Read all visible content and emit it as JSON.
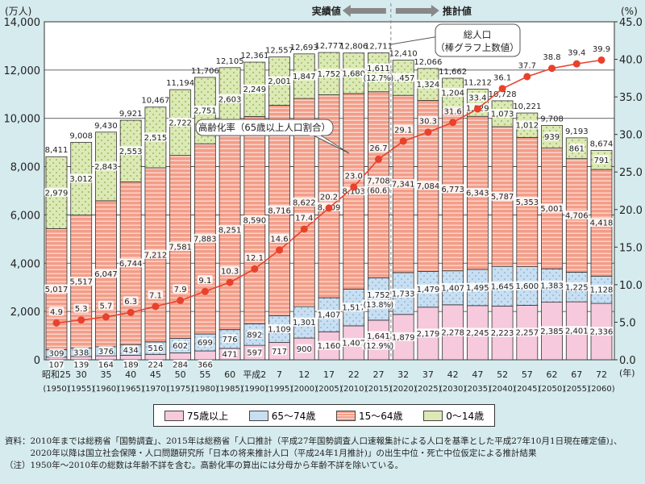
{
  "chart_data": {
    "type": "bar",
    "stacked": true,
    "left_axis": {
      "unit_label": "(万人)",
      "ylim": [
        0,
        14000
      ],
      "ticks": [
        "0",
        "2,000",
        "4,000",
        "6,000",
        "8,000",
        "10,000",
        "12,000",
        "14,000"
      ]
    },
    "right_axis": {
      "unit_label": "(%)",
      "ylim": [
        0,
        45
      ],
      "ticks": [
        "0.0",
        "5.0",
        "10.0",
        "15.0",
        "20.0",
        "25.0",
        "30.0",
        "35.0",
        "40.0",
        "45.0"
      ]
    },
    "x_unit_label": "(年)",
    "categories": [
      "昭和25",
      "30",
      "35",
      "40",
      "45",
      "50",
      "55",
      "60",
      "平成2",
      "7",
      "12",
      "17",
      "22",
      "27",
      "32",
      "37",
      "42",
      "47",
      "52",
      "57",
      "62",
      "67",
      "72"
    ],
    "categories_western": [
      "(1950)",
      "(1955)",
      "(1960)",
      "(1965)",
      "(1970)",
      "(1975)",
      "(1980)",
      "(1985)",
      "(1990)",
      "(1995)",
      "(2000)",
      "(2005)",
      "(2010)",
      "(2015)",
      "(2020)",
      "(2025)",
      "(2030)",
      "(2035)",
      "(2040)",
      "(2045)",
      "(2050)",
      "(2055)",
      "(2060)"
    ],
    "series": [
      {
        "name": "75歳以上",
        "color": "#f6c9dc",
        "values": [
          107,
          139,
          164,
          189,
          224,
          284,
          366,
          471,
          597,
          717,
          900,
          1160,
          1407,
          1641,
          1879,
          2179,
          2278,
          2245,
          2223,
          2257,
          2385,
          2401,
          2336
        ]
      },
      {
        "name": "65～74歳",
        "color": "#c8dff1",
        "values": [
          309,
          338,
          376,
          434,
          516,
          602,
          699,
          776,
          892,
          1109,
          1301,
          1407,
          1517,
          1752,
          1733,
          1479,
          1407,
          1495,
          1645,
          1600,
          1383,
          1225,
          1128
        ]
      },
      {
        "name": "15～64歳",
        "color": "#f39d88",
        "values": [
          5017,
          5517,
          6047,
          6744,
          7212,
          7581,
          7883,
          8251,
          8590,
          8716,
          8622,
          8409,
          8103,
          7708,
          7341,
          7084,
          6773,
          6343,
          5787,
          5353,
          5001,
          4706,
          4418
        ]
      },
      {
        "name": "0～14歳",
        "color": "#dde9b5",
        "values": [
          2979,
          3012,
          2843,
          2553,
          2515,
          2722,
          2751,
          2603,
          2249,
          2001,
          1847,
          1752,
          1680,
          1611,
          1457,
          1324,
          1204,
          1129,
          1073,
          1012,
          939,
          861,
          791
        ]
      }
    ],
    "totals": [
      "8,411",
      "9,008",
      "9,430",
      "9,921",
      "10,467",
      "11,194",
      "11,706",
      "12,105",
      "12,361",
      "12,557",
      "12,693",
      "12,777",
      "12,806",
      "12,711",
      "12,410",
      "12,066",
      "11,662",
      "11,212",
      "10,728",
      "10,221",
      "9,708",
      "9,193",
      "8,674"
    ],
    "line": {
      "name": "高齢化率（65歳以上人口割合）",
      "color": "#e8412c",
      "axis": "right",
      "values": [
        4.9,
        5.3,
        5.7,
        6.3,
        7.1,
        7.9,
        9.1,
        10.3,
        12.1,
        14.6,
        17.4,
        20.2,
        23.0,
        26.7,
        29.1,
        30.3,
        31.6,
        33.4,
        36.1,
        37.7,
        38.8,
        39.4,
        39.9
      ]
    },
    "share_annotations_2015": {
      "0-14": "(12.7%)",
      "15-64": "(60.6)",
      "65-74": "(13.8%)",
      "75+": "(12.9%)"
    },
    "callout_total": [
      "総人口",
      "（棒グラフ上数値）"
    ],
    "actual_label": "実績値",
    "projection_label": "推計値",
    "legend_placement": "bottom",
    "grid": true
  },
  "notes": {
    "source_label": "資料：",
    "source_text": "2010年までは総務省「国勢調査」、2015年は総務省「人口推計（平成27年国勢調査人口速報集計による人口を基準とした平成27年10月1日現在確定値)」、2020年以降は国立社会保障・人口問題研究所「日本の将来推計人口（平成24年1月推計)」の出生中位・死亡中位仮定による推計結果",
    "note_label": "（注）",
    "note_text": "1950年～2010年の総数は年齢不詳を含む。高齢化率の算出には分母から年齢不詳を除いている。"
  }
}
